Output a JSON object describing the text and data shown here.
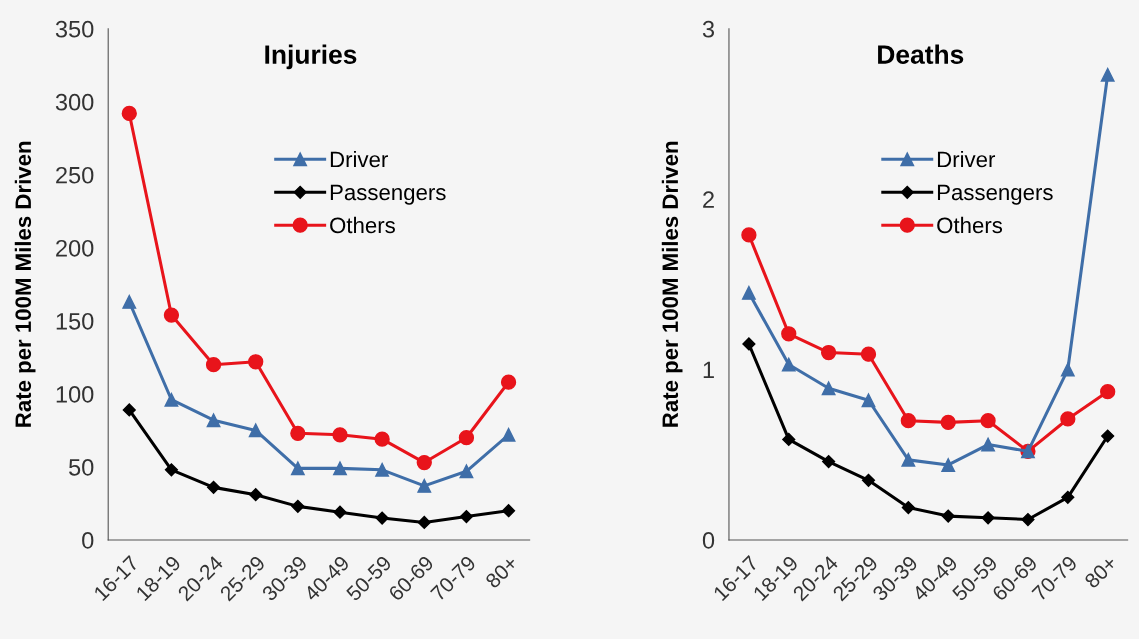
{
  "chart_data": [
    {
      "type": "line",
      "title": "Injuries",
      "ylabel": "Rate per 100M Miles Driven",
      "categories": [
        "16-17",
        "18-19",
        "20-24",
        "25-29",
        "30-39",
        "40-49",
        "50-59",
        "60-69",
        "70-79",
        "80+"
      ],
      "series": [
        {
          "name": "Driver",
          "color": "#3f6ea8",
          "marker": "triangle",
          "values": [
            163,
            96,
            82,
            75,
            49,
            49,
            48,
            37,
            47,
            72
          ]
        },
        {
          "name": "Passengers",
          "color": "#000000",
          "marker": "diamond",
          "values": [
            89,
            48,
            36,
            31,
            23,
            19,
            15,
            12,
            16,
            20
          ]
        },
        {
          "name": "Others",
          "color": "#e8141b",
          "marker": "circle",
          "values": [
            292,
            154,
            120,
            122,
            73,
            72,
            69,
            53,
            70,
            108
          ]
        }
      ],
      "ylim": [
        0,
        350
      ],
      "yticks": [
        0,
        50,
        100,
        150,
        200,
        250,
        300,
        350
      ],
      "grid": false,
      "legend": "top"
    },
    {
      "type": "line",
      "title": "Deaths",
      "ylabel": "Rate per 100M Miles Driven",
      "categories": [
        "16-17",
        "18-19",
        "20-24",
        "25-29",
        "30-39",
        "40-49",
        "50-59",
        "60-69",
        "70-79",
        "80+"
      ],
      "series": [
        {
          "name": "Driver",
          "color": "#3f6ea8",
          "marker": "triangle",
          "values": [
            1.45,
            1.03,
            0.89,
            0.82,
            0.47,
            0.44,
            0.56,
            0.52,
            1.0,
            2.73
          ]
        },
        {
          "name": "Passengers",
          "color": "#000000",
          "marker": "diamond",
          "values": [
            1.15,
            0.59,
            0.46,
            0.35,
            0.19,
            0.14,
            0.13,
            0.12,
            0.25,
            0.61
          ]
        },
        {
          "name": "Others",
          "color": "#e8141b",
          "marker": "circle",
          "values": [
            1.79,
            1.21,
            1.1,
            1.09,
            0.7,
            0.69,
            0.7,
            0.52,
            0.71,
            0.87
          ]
        }
      ],
      "ylim": [
        0,
        3
      ],
      "yticks": [
        0,
        1,
        2,
        3
      ],
      "grid": false,
      "legend": "top"
    }
  ]
}
